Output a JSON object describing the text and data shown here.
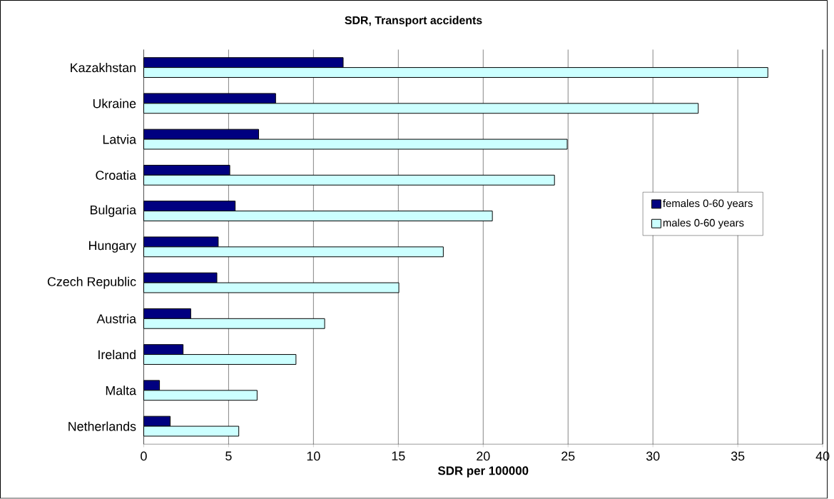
{
  "chart_data": {
    "type": "bar",
    "orientation": "horizontal",
    "title": "SDR, Transport accidents",
    "xlabel": "SDR per 100000",
    "categories": [
      "Kazakhstan",
      "Ukraine",
      "Latvia",
      "Croatia",
      "Bulgaria",
      "Hungary",
      "Czech Republic",
      "Austria",
      "Ireland",
      "Malta",
      "Netherlands"
    ],
    "series": [
      {
        "name": "females 0-60 years",
        "color": "#000080",
        "values": [
          11.75,
          7.77,
          6.77,
          5.07,
          5.39,
          4.39,
          4.31,
          2.77,
          2.32,
          0.93,
          1.56
        ]
      },
      {
        "name": "males 0-60 years",
        "color": "#ccffff",
        "values": [
          36.77,
          32.67,
          24.95,
          24.2,
          20.54,
          17.65,
          15.03,
          10.66,
          8.97,
          6.68,
          5.6
        ]
      }
    ],
    "xlim": [
      0,
      40
    ],
    "xticks": [
      0,
      5,
      10,
      15,
      20,
      25,
      30,
      35,
      40
    ],
    "grid": "x",
    "legend": "right"
  }
}
